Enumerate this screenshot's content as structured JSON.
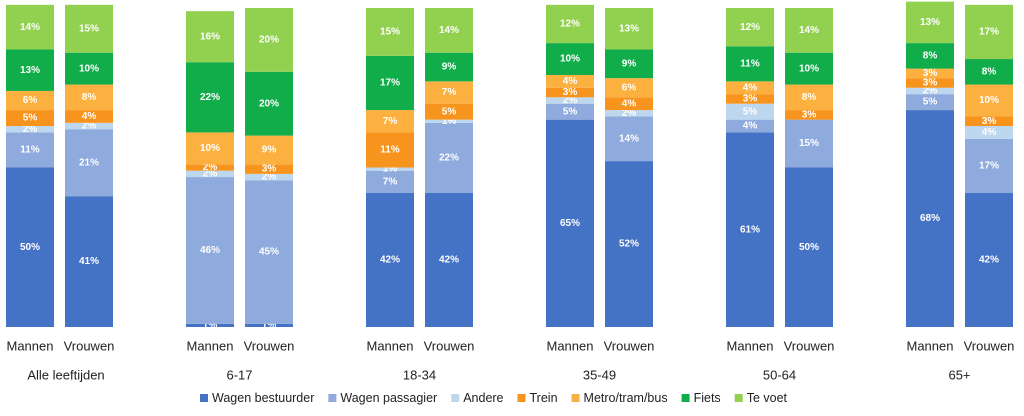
{
  "chart_data": {
    "type": "stacked-bar",
    "groups": [
      "Alle leeftijden",
      "6-17",
      "18-34",
      "35-49",
      "50-64",
      "65+"
    ],
    "categories": [
      "Mannen",
      "Vrouwen",
      "Mannen",
      "Vrouwen",
      "Mannen",
      "Vrouwen",
      "Mannen",
      "Vrouwen",
      "Mannen",
      "Vrouwen",
      "Mannen",
      "Vrouwen"
    ],
    "series": [
      {
        "name": "Wagen bestuurder",
        "color": "#4472c4",
        "values": [
          50,
          41,
          1,
          1,
          42,
          42,
          65,
          52,
          61,
          50,
          68,
          42
        ],
        "value_labels": [
          "50%",
          "41%",
          "1%",
          "1%",
          "42%",
          "42%",
          "65%",
          "52%",
          "61%",
          "50%",
          "68%",
          "42%"
        ]
      },
      {
        "name": "Wagen passagier",
        "color": "#8faadc",
        "values": [
          11,
          21,
          46,
          45,
          7,
          22,
          5,
          14,
          4,
          15,
          5,
          17
        ],
        "value_labels": [
          "11%",
          "21%",
          "46%",
          "45%",
          "7%",
          "22%",
          "5%",
          "14%",
          "4%",
          "15%",
          "5%",
          "17%"
        ]
      },
      {
        "name": "Andere",
        "color": "#bdd7ee",
        "values": [
          2,
          2,
          2,
          2,
          1,
          1,
          2,
          2,
          5,
          0,
          2,
          4
        ],
        "value_labels": [
          "2%",
          "2%",
          "2%",
          "2%",
          "1%",
          "1%",
          "2%",
          "2%",
          "5%",
          null,
          "2%",
          "4%"
        ]
      },
      {
        "name": "Trein",
        "color": "#f7941d",
        "values": [
          5,
          4,
          2,
          3,
          11,
          5,
          3,
          4,
          3,
          3,
          3,
          3
        ],
        "value_labels": [
          "5%",
          "4%",
          "2%",
          "3%",
          "11%",
          "5%",
          "3%",
          "4%",
          "3%",
          "3%",
          "3%",
          "3%"
        ]
      },
      {
        "name": "Metro/tram/bus",
        "color": "#fbb040",
        "values": [
          6,
          8,
          10,
          9,
          7,
          7,
          4,
          6,
          4,
          8,
          3,
          10
        ],
        "value_labels": [
          "6%",
          "8%",
          "10%",
          "9%",
          "7%",
          "7%",
          "4%",
          "6%",
          "4%",
          "8%",
          "3%",
          "10%"
        ]
      },
      {
        "name": "Fiets",
        "color": "#12ad4b",
        "values": [
          13,
          10,
          22,
          20,
          17,
          9,
          10,
          9,
          11,
          10,
          8,
          8
        ],
        "value_labels": [
          "13%",
          "10%",
          "22%",
          "20%",
          "17%",
          "9%",
          "10%",
          "9%",
          "11%",
          "10%",
          "8%",
          "8%"
        ]
      },
      {
        "name": "Te voet",
        "color": "#92d050",
        "values": [
          14,
          15,
          16,
          20,
          15,
          14,
          12,
          13,
          12,
          14,
          13,
          17
        ],
        "value_labels": [
          "14%",
          "15%",
          "16%",
          "20%",
          "15%",
          "14%",
          "12%",
          "13%",
          "12%",
          "14%",
          "13%",
          "17%"
        ]
      }
    ]
  }
}
